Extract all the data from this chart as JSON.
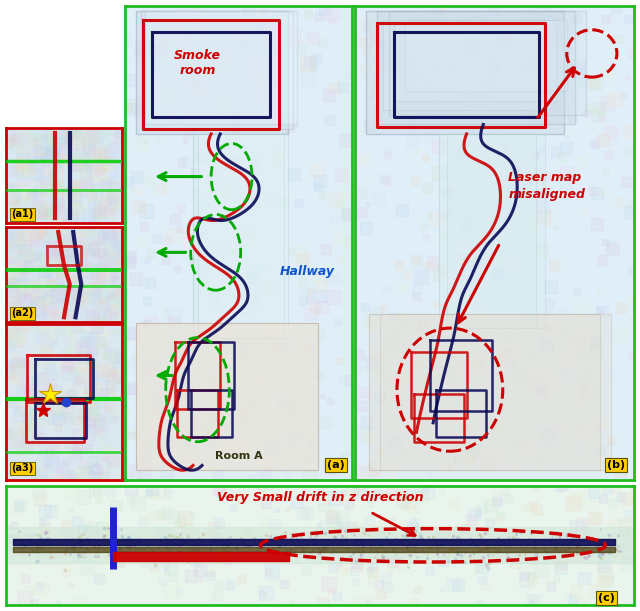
{
  "fig_width": 6.4,
  "fig_height": 6.11,
  "bg_color": "#ffffff",
  "panel_border_color": "#22bb22",
  "panel_border_lw": 2.0,
  "label_bg": "#ffcc00",
  "panel_a_label": "(a)",
  "panel_b_label": "(b)",
  "panel_c_label": "(c)",
  "inset_labels": [
    "(a1)",
    "(a2)",
    "(a3)"
  ],
  "smoke_room_label": "Smoke\nroom",
  "room_a_label": "Room A",
  "hallway_label": "Hallway",
  "laser_map_label": "Laser map\nmisaligned",
  "drift_label": "Very Small drift in z direction",
  "red": "#cc0000",
  "dark_navy": "#0a0a55",
  "blue": "#3355cc",
  "green": "#00aa00",
  "yellow_star": "#ffdd00",
  "map_bg": "#e8f0e8",
  "map_bg2": "#dce8f0",
  "inset_border": "#cc0000",
  "smoke_room_color": "#cc0000",
  "hallway_color": "#1155cc",
  "laser_color": "#cc0000",
  "drift_color": "#cc0000"
}
